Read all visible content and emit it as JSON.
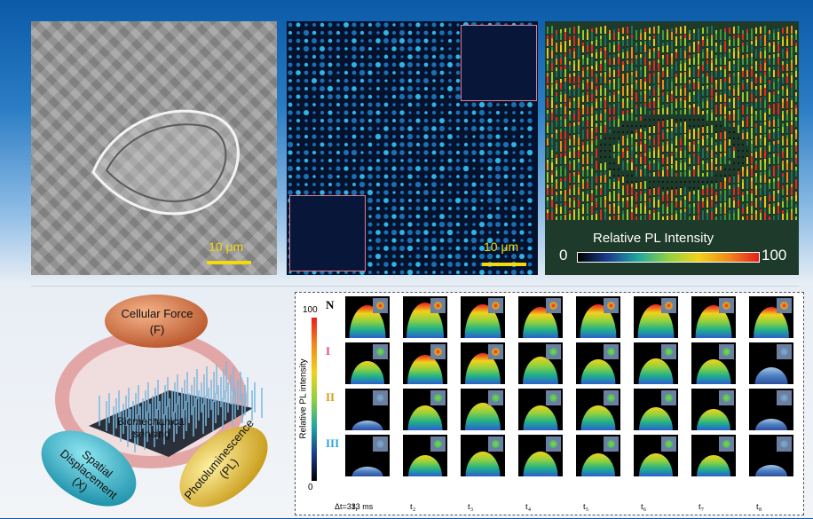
{
  "panels": {
    "brightfield": {
      "scale_label": "10 μm"
    },
    "pl_map": {
      "scale_label": "10 μm"
    },
    "intensity_map": {
      "colorbar_title": "Relative PL Intensity",
      "colorbar_min": "0",
      "colorbar_max": "100"
    }
  },
  "schematic": {
    "force": {
      "title": "Cellular Force",
      "symbol": "(F)"
    },
    "displacement": {
      "title": "Spatial Displacement",
      "symbol": "(X)"
    },
    "photoluminescence": {
      "title": "Photoluminescence",
      "symbol": "(PL)"
    },
    "center": "Biomechanical sensing"
  },
  "grid": {
    "colorbar_label": "Relative PL intensity",
    "colorbar_max": "100",
    "colorbar_min": "0",
    "rows": [
      "N",
      "I",
      "II",
      "III"
    ],
    "time_labels": [
      "t₁",
      "t₂",
      "t₃",
      "t₄",
      "t₅",
      "t₆",
      "t₇",
      "t₈"
    ],
    "interval": "Δt=333 ms",
    "intensity": [
      [
        0.85,
        0.95,
        0.9,
        0.8,
        0.9,
        0.9,
        0.85,
        0.8
      ],
      [
        0.55,
        0.75,
        0.8,
        0.7,
        0.6,
        0.65,
        0.6,
        0.35
      ],
      [
        0.15,
        0.6,
        0.7,
        0.6,
        0.6,
        0.55,
        0.5,
        0.2
      ],
      [
        0.15,
        0.5,
        0.6,
        0.6,
        0.55,
        0.55,
        0.5,
        0.2
      ]
    ]
  },
  "colors": {
    "scalebar": "#f5d90a",
    "scalebar_cyan": "#f5d90a"
  }
}
